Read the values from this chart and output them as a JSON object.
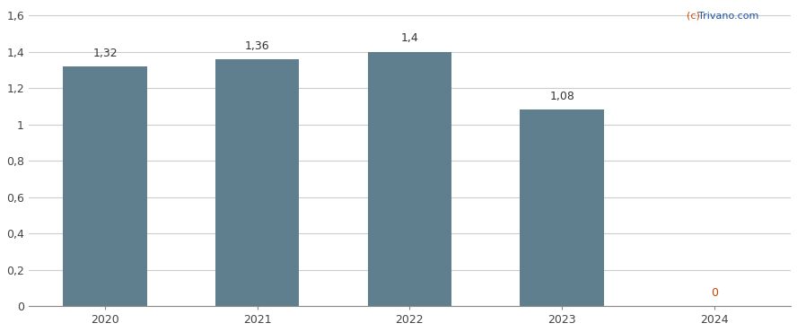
{
  "categories": [
    "2020",
    "2021",
    "2022",
    "2023",
    "2024"
  ],
  "values": [
    1.32,
    1.36,
    1.4,
    1.08,
    0
  ],
  "bar_color": "#5f7f8f",
  "label_color_normal": "#333333",
  "label_color_zero": "#cc4400",
  "background_color": "#ffffff",
  "grid_color": "#cccccc",
  "yticks": [
    0,
    0.2,
    0.4,
    0.6,
    0.8,
    1.0,
    1.2,
    1.4,
    1.6
  ],
  "ytick_labels": [
    "0",
    "0,2",
    "0,4",
    "0,6",
    "0,8",
    "1",
    "1,2",
    "1,4",
    "1,6"
  ],
  "ylim": [
    0,
    1.65
  ],
  "watermark_color_c": "#cc4400",
  "watermark_color_trivano": "#1a52a0",
  "bar_width": 0.55
}
